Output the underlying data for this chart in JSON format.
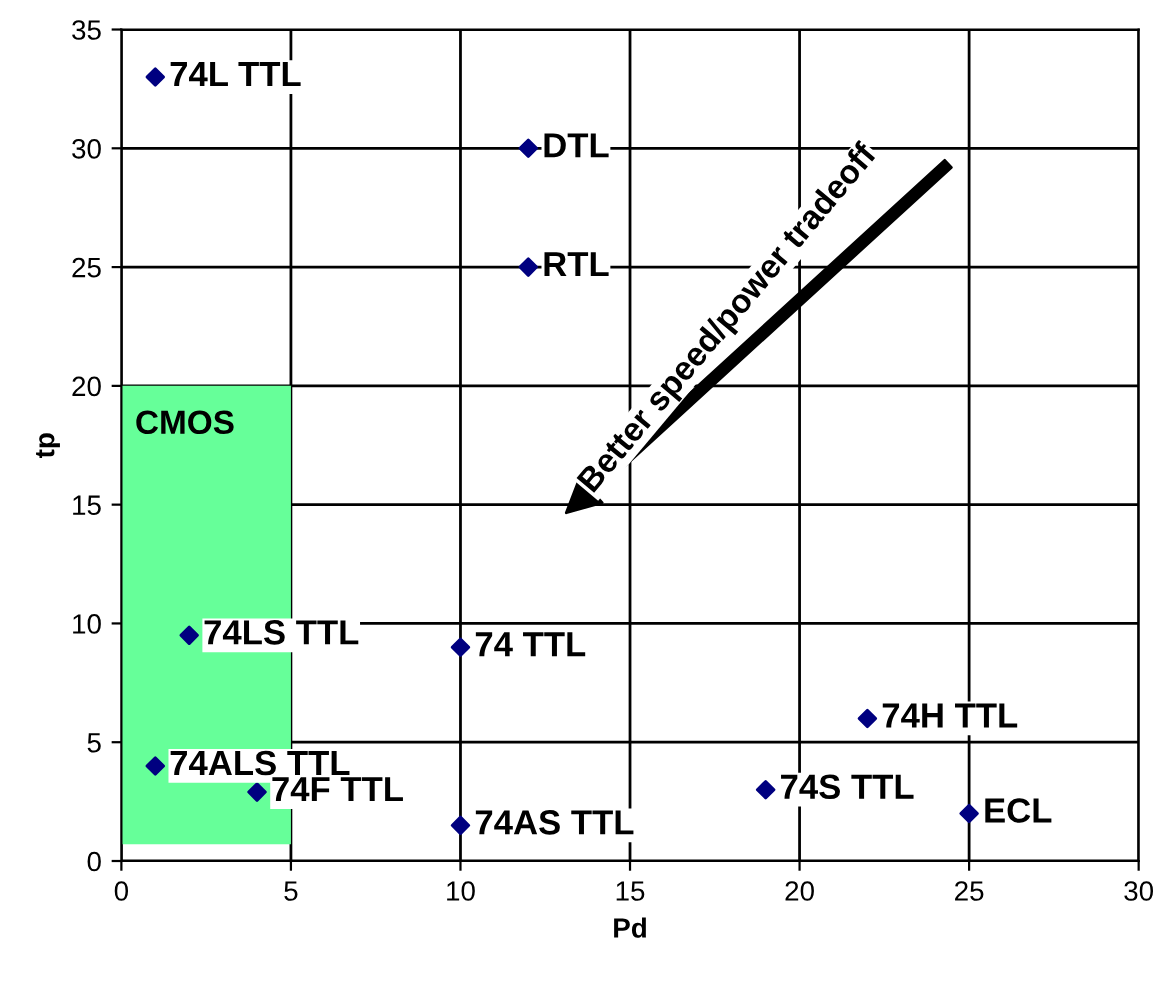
{
  "chart_data": {
    "type": "scatter",
    "xlabel": "Pd",
    "ylabel": "tp",
    "series": [
      {
        "type": "bar",
        "name": "CMOS",
        "color": "#66ff99",
        "x": [
          2.5
        ],
        "base": [
          0.7
        ],
        "values": [
          19.3
        ]
      },
      {
        "color": "#000080",
        "x": [
          1,
          12,
          12,
          2,
          10,
          1,
          4,
          10,
          19,
          22,
          25
        ],
        "values": [
          33,
          30,
          25,
          9.5,
          9,
          4,
          2.9,
          1.5,
          3,
          6,
          2
        ]
      }
    ],
    "marker": "diamond",
    "xlim": [
      0,
      30
    ],
    "ylim": [
      0,
      35
    ],
    "xticks": [
      0,
      5,
      10,
      15,
      20,
      25,
      30
    ],
    "yticks": [
      0,
      5,
      10,
      15,
      20,
      25,
      30,
      35
    ],
    "grid": true,
    "annotations": [
      {
        "text": "74L TTL",
        "x": 1,
        "y": 33
      },
      {
        "text": "DTL",
        "x": 12,
        "y": 30
      },
      {
        "text": "RTL",
        "x": 12,
        "y": 25
      },
      {
        "text": "74LS TTL",
        "x": 2,
        "y": 9.5
      },
      {
        "text": "74 TTL",
        "x": 10,
        "y": 9
      },
      {
        "text": "74ALS TTL",
        "x": 1,
        "y": 4
      },
      {
        "text": "74F TTL",
        "x": 4,
        "y": 2.9
      },
      {
        "text": "74AS TTL",
        "x": 10,
        "y": 1.5
      },
      {
        "text": "74S TTL",
        "x": 19,
        "y": 3
      },
      {
        "text": "74H TTL",
        "x": 22,
        "y": 6
      },
      {
        "text": "ECL",
        "x": 25,
        "y": 2
      },
      "Better speed/power tradeoff"
    ]
  }
}
